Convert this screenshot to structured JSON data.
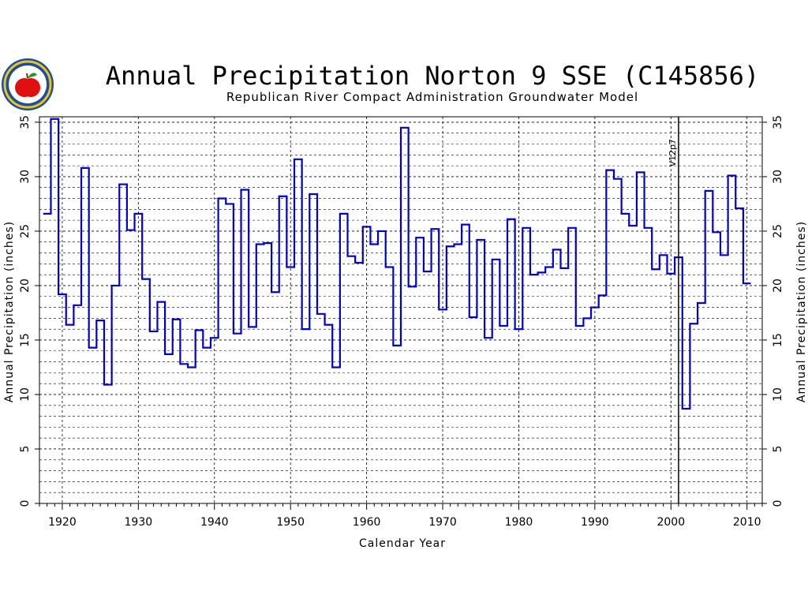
{
  "chart_data": {
    "type": "line",
    "step": true,
    "title": "Annual Precipitation Norton 9 SSE (C145856)",
    "subtitle": "Republican River Compact Administration Groundwater Model",
    "xlabel": "Calendar Year",
    "ylabel": "Annual Precipitation (inches)",
    "ylabel_right": "Annual Precipitation (inches)",
    "xlim": [
      1917,
      2012
    ],
    "ylim": [
      0,
      35.5
    ],
    "x_ticks": [
      1920,
      1930,
      1940,
      1950,
      1960,
      1970,
      1980,
      1990,
      2000,
      2010
    ],
    "y_ticks": [
      0,
      5,
      10,
      15,
      20,
      25,
      30,
      35
    ],
    "grid": true,
    "line_color": "#0000cc",
    "annotation": {
      "text": "V12p7",
      "x": 2001
    },
    "series": [
      {
        "x": [
          1918,
          1919,
          1920,
          1921,
          1922,
          1923,
          1924,
          1925,
          1926,
          1927,
          1928,
          1929,
          1930,
          1931,
          1932,
          1933,
          1934,
          1935,
          1936,
          1937,
          1938,
          1939,
          1940,
          1941,
          1942,
          1943,
          1944,
          1945,
          1946,
          1947,
          1948,
          1949,
          1950,
          1951,
          1952,
          1953,
          1954,
          1955,
          1956,
          1957,
          1958,
          1959,
          1960,
          1961,
          1962,
          1963,
          1964,
          1965,
          1966,
          1967,
          1968,
          1969,
          1970,
          1971,
          1972,
          1973,
          1974,
          1975,
          1976,
          1977,
          1978,
          1979,
          1980,
          1981,
          1982,
          1983,
          1984,
          1985,
          1986,
          1987,
          1988,
          1989,
          1990,
          1991,
          1992,
          1993,
          1994,
          1995,
          1996,
          1997,
          1998,
          1999,
          2000,
          2001,
          2002,
          2003,
          2004,
          2005,
          2006,
          2007,
          2008,
          2009,
          2010
        ],
        "values": [
          26.6,
          35.3,
          19.2,
          16.4,
          18.2,
          30.8,
          14.3,
          16.8,
          10.9,
          20.0,
          29.3,
          25.1,
          26.6,
          20.6,
          15.8,
          18.5,
          13.7,
          16.9,
          12.8,
          12.5,
          15.9,
          14.3,
          15.2,
          28.0,
          27.5,
          15.6,
          28.8,
          16.2,
          23.8,
          23.9,
          19.4,
          28.2,
          21.7,
          31.6,
          16.0,
          28.4,
          17.4,
          16.4,
          12.5,
          26.6,
          22.7,
          22.1,
          25.4,
          23.8,
          25.0,
          21.7,
          14.5,
          34.5,
          19.9,
          24.4,
          21.3,
          25.2,
          17.8,
          23.6,
          23.8,
          25.6,
          17.1,
          24.2,
          15.2,
          22.4,
          16.3,
          26.1,
          16.0,
          25.3,
          21.0,
          21.2,
          21.7,
          23.3,
          21.6,
          25.3,
          16.3,
          17.0,
          18.0,
          19.1,
          30.6,
          29.8,
          26.6,
          25.5,
          30.4,
          25.3,
          21.5,
          22.8,
          21.1,
          22.6,
          8.7,
          16.5,
          18.4,
          28.7,
          24.9,
          22.8,
          30.1,
          27.1,
          20.2
        ]
      }
    ]
  },
  "logo": {
    "name": "apple-seal",
    "colors": {
      "ring": "#1a4fa0",
      "apple": "#e01010",
      "leaf": "#2a9a2a",
      "rim": "#f0c020"
    }
  }
}
